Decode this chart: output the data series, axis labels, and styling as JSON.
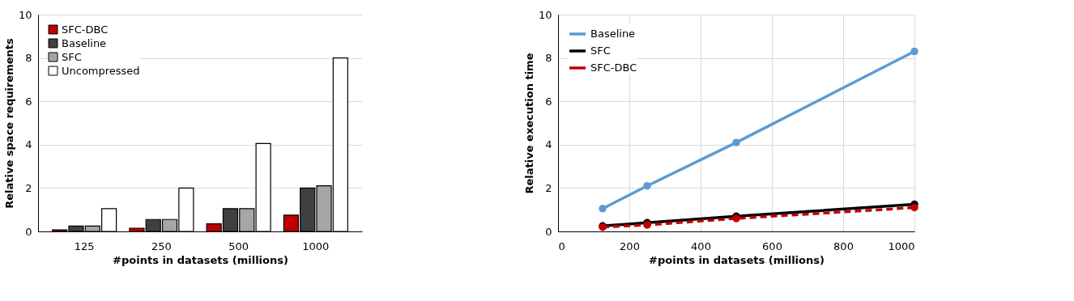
{
  "chart_data": [
    {
      "type": "bar",
      "xlabel": "#points in datasets (millions)",
      "ylabel": "Relative space requirements",
      "categories": [
        "125",
        "250",
        "500",
        "1000"
      ],
      "ylim": [
        0,
        10
      ],
      "yticks": [
        0,
        2,
        4,
        6,
        8,
        10
      ],
      "grid": "y",
      "legend": "top left",
      "series": [
        {
          "name": "SFC-DBC",
          "color": "#c00000",
          "values": [
            0.07,
            0.15,
            0.35,
            0.75
          ]
        },
        {
          "name": "Baseline",
          "color": "#404040",
          "values": [
            0.25,
            0.55,
            1.05,
            2.0
          ]
        },
        {
          "name": "SFC",
          "color": "#a6a6a6",
          "values": [
            0.25,
            0.55,
            1.05,
            2.1
          ]
        },
        {
          "name": "Uncompressed",
          "color": "#ffffff",
          "values": [
            1.05,
            2.0,
            4.05,
            8.0
          ]
        }
      ]
    },
    {
      "type": "line",
      "xlabel": "#points in datasets (millions)",
      "ylabel": "Relative execution time",
      "x": [
        125,
        250,
        500,
        1000
      ],
      "xlim": [
        0,
        1000
      ],
      "xticks": [
        0,
        200,
        400,
        600,
        800,
        1000
      ],
      "ylim": [
        0,
        10
      ],
      "yticks": [
        0,
        2,
        4,
        6,
        8,
        10
      ],
      "grid": true,
      "legend": "top left",
      "marker": "circle",
      "series": [
        {
          "name": "Baseline",
          "color": "#5b9bd5",
          "values": [
            1.05,
            2.1,
            4.1,
            8.3
          ],
          "line_style": "solid"
        },
        {
          "name": "SFC",
          "color": "#000000",
          "values": [
            0.25,
            0.4,
            0.7,
            1.25
          ],
          "line_style": "solid"
        },
        {
          "name": "SFC-DBC",
          "color": "#c00000",
          "values": [
            0.2,
            0.3,
            0.6,
            1.1
          ],
          "line_style": "dashed"
        }
      ]
    }
  ]
}
